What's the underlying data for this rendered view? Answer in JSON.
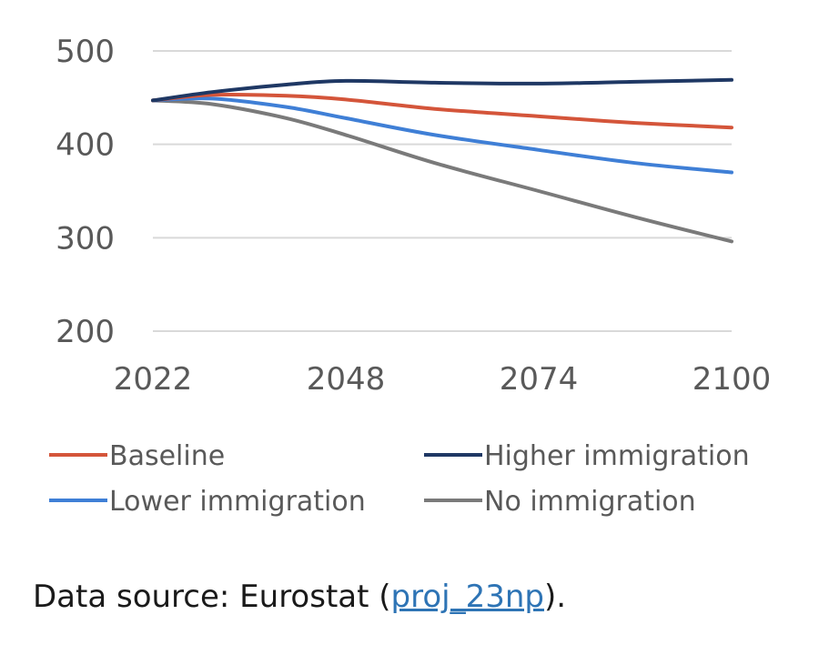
{
  "chart_data": {
    "type": "line",
    "x": [
      2022,
      2030,
      2040,
      2048,
      2060,
      2074,
      2087,
      2100
    ],
    "series": [
      {
        "name": "Baseline",
        "color": "#d4553a",
        "values": [
          447,
          453,
          452,
          448,
          438,
          430,
          423,
          418
        ]
      },
      {
        "name": "Higher immigration",
        "color": "#1f3864",
        "values": [
          447,
          456,
          464,
          468,
          466,
          465,
          467,
          469
        ]
      },
      {
        "name": "Lower immigration",
        "color": "#3f7fd6",
        "values": [
          447,
          449,
          440,
          428,
          410,
          394,
          380,
          370
        ]
      },
      {
        "name": "No immigration",
        "color": "#7a7a7a",
        "values": [
          447,
          443,
          428,
          410,
          380,
          350,
          322,
          296
        ]
      }
    ],
    "xticks": [
      "2022",
      "2048",
      "2074",
      "2100"
    ],
    "yticks": [
      "200",
      "300",
      "400",
      "500"
    ],
    "xlim": [
      2022,
      2100
    ],
    "ylim": [
      200,
      500
    ],
    "grid": "horizontal",
    "legend_position": "bottom"
  },
  "source": {
    "prefix": "Data source: Eurostat (",
    "link": "proj_23np",
    "suffix": ")."
  }
}
